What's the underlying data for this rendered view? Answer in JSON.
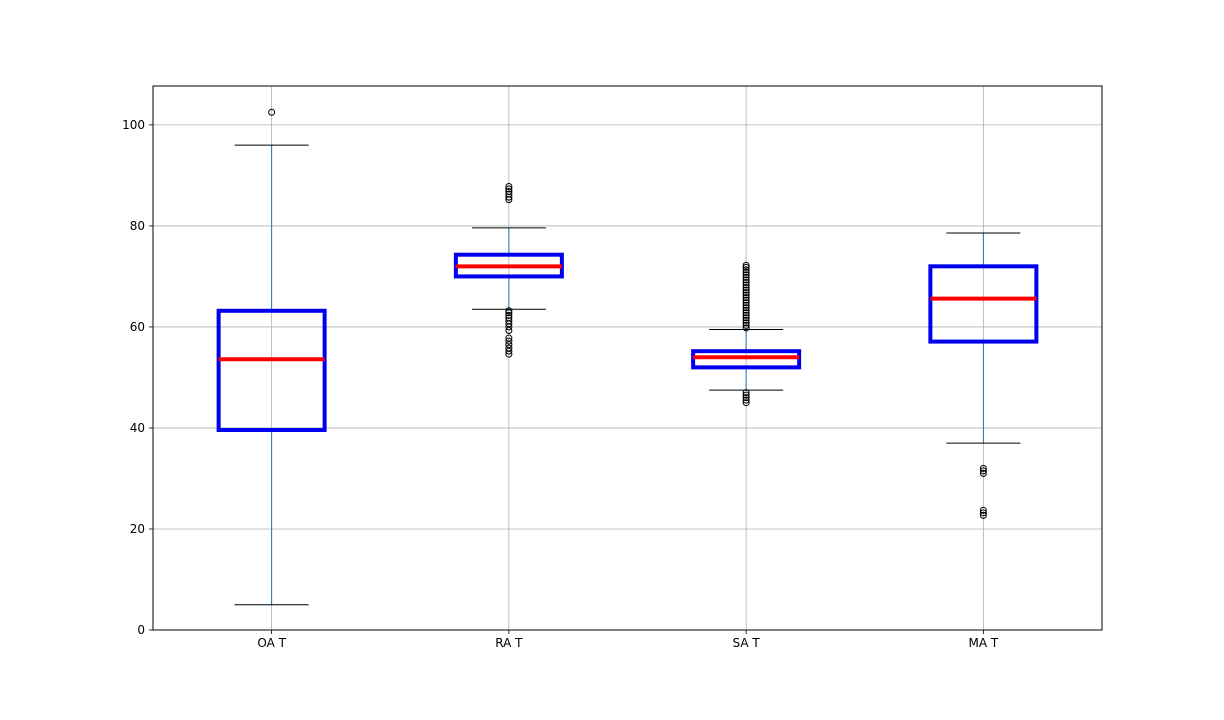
{
  "chart_data": {
    "type": "box",
    "title": "",
    "xlabel": "",
    "ylabel": "",
    "ylim": [
      0,
      107.7
    ],
    "yticks": [
      0,
      20,
      40,
      60,
      80,
      100
    ],
    "ytick_labels": [
      "0",
      "20",
      "40",
      "60",
      "80",
      "100"
    ],
    "grid": true,
    "categories": [
      "OA T",
      "RA T",
      "SA T",
      "MA T"
    ],
    "boxes": [
      {
        "label": "OA T",
        "whisker_low": 5.0,
        "q1": 39.6,
        "median": 53.6,
        "q3": 63.2,
        "whisker_high": 96.0,
        "outliers": [
          102.5
        ]
      },
      {
        "label": "RA T",
        "whisker_low": 63.5,
        "q1": 70.0,
        "median": 72.0,
        "q3": 74.3,
        "whisker_high": 79.6,
        "outliers": [
          54.6,
          55.2,
          55.8,
          56.5,
          57.2,
          57.8,
          59.3,
          60.0,
          60.6,
          61.2,
          61.8,
          62.3,
          62.8,
          63.2,
          85.2,
          85.7,
          86.3,
          86.8,
          87.3,
          87.8
        ]
      },
      {
        "label": "SA T",
        "whisker_low": 47.5,
        "q1": 52.0,
        "median": 54.0,
        "q3": 55.2,
        "whisker_high": 59.5,
        "outliers": [
          45.0,
          45.5,
          46.0,
          46.5,
          47.0,
          59.8,
          60.3,
          60.8,
          61.3,
          61.8,
          62.3,
          62.8,
          63.3,
          63.8,
          64.3,
          64.8,
          65.3,
          65.8,
          66.3,
          66.8,
          67.3,
          67.8,
          68.3,
          68.8,
          69.3,
          69.8,
          70.3,
          70.8,
          71.3,
          71.8,
          72.2
        ]
      },
      {
        "label": "MA T",
        "whisker_low": 37.0,
        "q1": 57.1,
        "median": 65.6,
        "q3": 72.0,
        "whisker_high": 78.6,
        "outliers": [
          22.7,
          23.2,
          23.7,
          31.0,
          31.5,
          32.0
        ]
      }
    ],
    "colors": {
      "box": "#0000ee",
      "median": "#ff0000",
      "whisker": "#1f77b4",
      "cap": "#000000",
      "flier": "#000000",
      "grid": "#b0b0b0",
      "axes": "#000000"
    }
  }
}
